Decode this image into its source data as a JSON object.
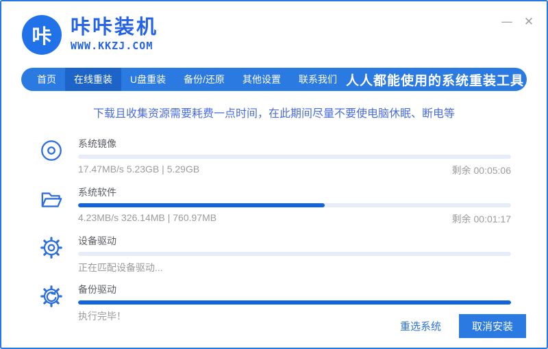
{
  "window": {
    "minimize_icon": "—",
    "close_icon": "✕"
  },
  "brand": {
    "logo_char": "咔",
    "title": "咔咔装机",
    "subtitle": "WWW.KKZJ.COM"
  },
  "nav": {
    "items": [
      {
        "label": "首页",
        "active": false
      },
      {
        "label": "在线重装",
        "active": true
      },
      {
        "label": "U盘重装",
        "active": false
      },
      {
        "label": "备份/还原",
        "active": false
      },
      {
        "label": "其他设置",
        "active": false
      },
      {
        "label": "联系我们",
        "active": false
      }
    ],
    "slogan": "人人都能使用的系统重装工具"
  },
  "notice": "下载且收集资源需要耗费一点时间，在此期间尽量不要使电脑休眠、断电等",
  "tasks": [
    {
      "name": "系统镜像",
      "icon": "disc-icon",
      "progress": 0,
      "detail": "17.47MB/s 5.23GB | 5.29GB",
      "remaining": "剩余 00:05:06"
    },
    {
      "name": "系统软件",
      "icon": "open-folder-icon",
      "progress": 57,
      "detail": "4.23MB/s 326.14MB | 760.97MB",
      "remaining": "剩余 00:01:17"
    },
    {
      "name": "设备驱动",
      "icon": "gear-icon",
      "progress": 0,
      "detail": "正在匹配设备驱动...",
      "remaining": ""
    },
    {
      "name": "备份驱动",
      "icon": "gear-sync-icon",
      "progress": 100,
      "detail": "执行完毕！",
      "remaining": ""
    }
  ],
  "footer": {
    "reselect_label": "重选系统",
    "cancel_label": "取消安装"
  },
  "colors": {
    "accent": "#2b7ae1",
    "accent_dark": "#1d64c8",
    "progress_fill": "#1164dc",
    "progress_track": "#e7edf8",
    "brand_blue": "#2463e6",
    "notice_blue": "#4a6ce0",
    "border_blue": "#2677e3"
  }
}
